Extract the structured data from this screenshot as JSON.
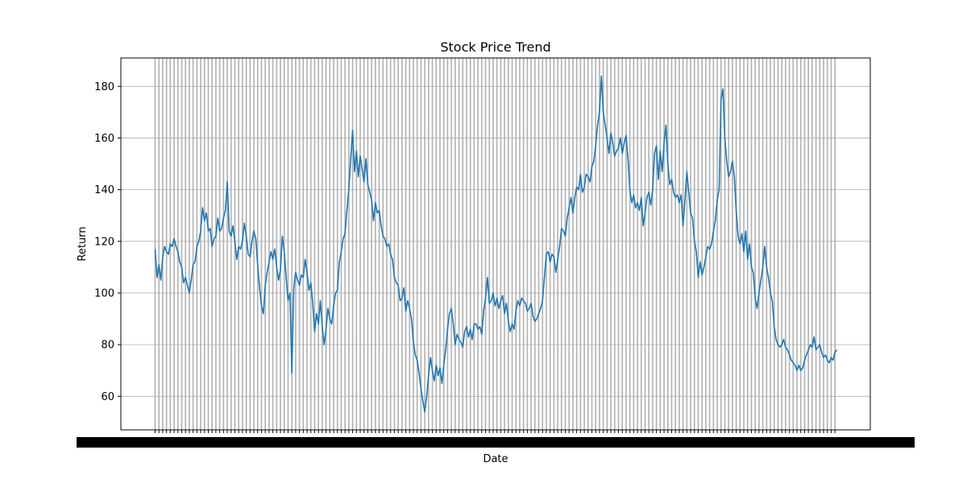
{
  "chart_data": {
    "type": "line",
    "title": "Stock Price Trend",
    "xlabel": "Date",
    "ylabel": "Return",
    "ylim": [
      47,
      191
    ],
    "yticks": [
      60,
      80,
      100,
      120,
      140,
      160,
      180
    ],
    "grid": true,
    "series": [
      {
        "color": "#1f77b4",
        "values": [
          117,
          106,
          111,
          105,
          114,
          118,
          116,
          115,
          119,
          118,
          121,
          118,
          116,
          112,
          110,
          104,
          106,
          103,
          100,
          105,
          111,
          112,
          118,
          120,
          124,
          133,
          128,
          131,
          124,
          125,
          118,
          121,
          122,
          129,
          124,
          125,
          129,
          132,
          143,
          124,
          122,
          126,
          120,
          113,
          118,
          117,
          120,
          127,
          122,
          115,
          114,
          120,
          124,
          121,
          111,
          102,
          95,
          92,
          103,
          108,
          112,
          116,
          113,
          117,
          110,
          105,
          109,
          122,
          116,
          106,
          97,
          100,
          69,
          102,
          108,
          105,
          103,
          107,
          106,
          113,
          108,
          101,
          104,
          96,
          85,
          92,
          88,
          97,
          87,
          80,
          86,
          94,
          90,
          88,
          95,
          100,
          101,
          112,
          116,
          121,
          123,
          132,
          140,
          152,
          163,
          147,
          155,
          145,
          153,
          148,
          143,
          152,
          142,
          139,
          136,
          128,
          135,
          131,
          132,
          126,
          122,
          121,
          118,
          119,
          115,
          113,
          106,
          104,
          103,
          97,
          98,
          102,
          93,
          97,
          94,
          90,
          81,
          76,
          74,
          69,
          63,
          58,
          54,
          60,
          68,
          75,
          70,
          66,
          72,
          68,
          71,
          65,
          72,
          78,
          86,
          92,
          94,
          88,
          80,
          84,
          82,
          81,
          79,
          85,
          87,
          83,
          86,
          82,
          88,
          88,
          86,
          87,
          84,
          93,
          98,
          106,
          96,
          97,
          100,
          95,
          98,
          94,
          97,
          99,
          92,
          96,
          89,
          85,
          88,
          86,
          93,
          97,
          95,
          98,
          97,
          96,
          93,
          94,
          96,
          91,
          89,
          90,
          92,
          94,
          97,
          106,
          115,
          116,
          112,
          115,
          114,
          108,
          113,
          118,
          125,
          124,
          122,
          129,
          133,
          137,
          131,
          137,
          141,
          140,
          146,
          139,
          141,
          146,
          145,
          143,
          149,
          151,
          157,
          165,
          170,
          184,
          170,
          165,
          160,
          154,
          162,
          158,
          153,
          155,
          156,
          160,
          154,
          158,
          161,
          152,
          140,
          135,
          138,
          133,
          135,
          132,
          137,
          126,
          131,
          137,
          139,
          134,
          140,
          154,
          157,
          144,
          155,
          147,
          158,
          165,
          150,
          142,
          144,
          139,
          137,
          138,
          135,
          138,
          126,
          136,
          147,
          139,
          131,
          129,
          120,
          116,
          106,
          112,
          107,
          110,
          114,
          118,
          117,
          119,
          124,
          128,
          136,
          140,
          175,
          179,
          160,
          151,
          145,
          147,
          151,
          145,
          132,
          122,
          119,
          123,
          116,
          124,
          113,
          119,
          110,
          108,
          98,
          94,
          100,
          105,
          110,
          118,
          110,
          106,
          100,
          97,
          87,
          82,
          80,
          79,
          80,
          82,
          79,
          78,
          76,
          74,
          73,
          72,
          70,
          72,
          70,
          71,
          74,
          76,
          78,
          80,
          79,
          83,
          78,
          79,
          80,
          77,
          75,
          76,
          74,
          73,
          75,
          74,
          77,
          78
        ]
      }
    ]
  }
}
